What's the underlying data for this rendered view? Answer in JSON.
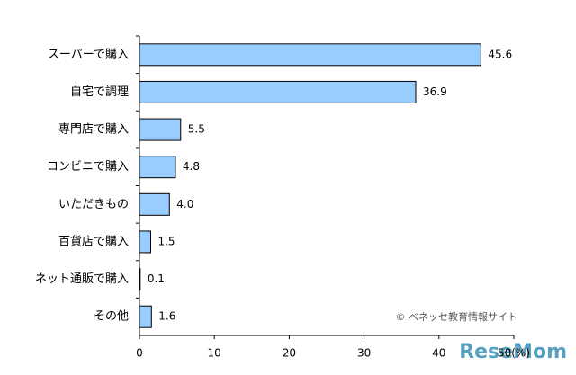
{
  "chart_data": {
    "type": "bar",
    "orientation": "horizontal",
    "categories": [
      "スーパーで購入",
      "自宅で調理",
      "専門店で購入",
      "コンビニで購入",
      "いただきもの",
      "百貨店で購入",
      "ネット通販で購入",
      "その他"
    ],
    "values": [
      45.6,
      36.9,
      5.5,
      4.8,
      4.0,
      1.5,
      0.1,
      1.6
    ],
    "value_labels": [
      "45.6",
      "36.9",
      "5.5",
      "4.8",
      "4.0",
      "1.5",
      "0.1",
      "1.6"
    ],
    "color": "#99ccff",
    "xlim": [
      0,
      50
    ],
    "xticks": [
      0,
      10,
      20,
      30,
      40,
      {
        "value": 50,
        "label": "50(%)"
      }
    ],
    "annotation": "© ベネッセ教育情報サイト",
    "watermark": "ReseMom"
  }
}
